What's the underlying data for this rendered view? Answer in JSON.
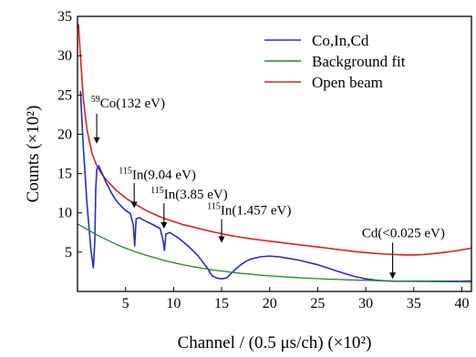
{
  "chart_data": {
    "type": "line",
    "xlabel": "Channel / (0.5 μs/ch)  (×10²)",
    "ylabel": "Counts (×10²)",
    "xlim": [
      0,
      41
    ],
    "ylim": [
      0,
      35
    ],
    "xticks": [
      5,
      10,
      15,
      20,
      25,
      30,
      35,
      40
    ],
    "yticks": [
      5,
      10,
      15,
      20,
      25,
      30,
      35
    ],
    "legend_position": "top-right",
    "series": [
      {
        "name": "Co,In,Cd",
        "color": "#2a2ad0",
        "x": [
          0.3,
          0.6,
          1.0,
          1.4,
          1.65,
          1.8,
          1.9,
          2.0,
          2.2,
          2.5,
          3.0,
          3.5,
          4.0,
          4.5,
          5.0,
          5.5,
          5.8,
          5.95,
          6.1,
          6.4,
          7.0,
          7.5,
          8.0,
          8.6,
          8.9,
          9.05,
          9.2,
          9.6,
          10.5,
          11.5,
          12.5,
          13.5,
          14.0,
          14.5,
          15.0,
          15.5,
          16.0,
          16.5,
          17.0,
          17.5,
          18.0,
          19.0,
          20.0,
          21.0,
          22.0,
          23.0,
          24.0,
          25.0,
          26.0,
          27.0,
          28.0,
          29.0,
          30.0,
          31.0,
          32.0,
          33.0,
          34.0,
          35.0,
          36.0,
          37.0,
          38.0,
          39.0,
          40.0,
          41.0
        ],
        "y": [
          25.5,
          18.5,
          11.0,
          5.2,
          3.0,
          6.5,
          13.0,
          15.5,
          16.0,
          15.2,
          13.8,
          12.6,
          11.6,
          10.9,
          10.3,
          9.9,
          8.5,
          5.8,
          9.2,
          9.4,
          9.0,
          8.7,
          8.4,
          8.0,
          6.5,
          5.2,
          7.3,
          7.5,
          6.8,
          5.8,
          4.6,
          3.0,
          2.0,
          1.7,
          1.6,
          1.7,
          2.3,
          2.9,
          3.4,
          3.8,
          4.1,
          4.4,
          4.5,
          4.4,
          4.2,
          4.0,
          3.7,
          3.4,
          3.0,
          2.6,
          2.2,
          1.85,
          1.6,
          1.45,
          1.35,
          1.3,
          1.3,
          1.3,
          1.3,
          1.3,
          1.3,
          1.3,
          1.3,
          1.35
        ]
      },
      {
        "name": "Background fit",
        "color": "#1f8a1f",
        "x": [
          0.0,
          1.0,
          2.0,
          3.0,
          4.0,
          5.0,
          6.0,
          7.0,
          8.0,
          9.0,
          10.0,
          11.0,
          12.0,
          13.0,
          14.0,
          15.0,
          16.0,
          17.0,
          18.0,
          19.0,
          20.0,
          22.0,
          24.0,
          26.0,
          28.0,
          30.0,
          32.0,
          34.0,
          36.0,
          38.0,
          40.0,
          41.0
        ],
        "y": [
          8.6,
          7.9,
          7.2,
          6.6,
          6.0,
          5.5,
          5.05,
          4.65,
          4.3,
          3.95,
          3.65,
          3.4,
          3.15,
          2.95,
          2.75,
          2.6,
          2.45,
          2.3,
          2.2,
          2.08,
          1.98,
          1.82,
          1.68,
          1.57,
          1.48,
          1.41,
          1.35,
          1.3,
          1.27,
          1.24,
          1.22,
          1.21
        ]
      },
      {
        "name": "Open beam",
        "color": "#e02020",
        "x": [
          0.1,
          0.3,
          0.6,
          1.0,
          1.5,
          2.0,
          2.5,
          3.0,
          4.0,
          5.0,
          6.0,
          7.0,
          8.0,
          9.0,
          10.0,
          11.0,
          12.0,
          13.0,
          14.0,
          15.0,
          16.0,
          17.0,
          18.0,
          19.0,
          20.0,
          21.0,
          22.0,
          23.0,
          24.0,
          25.0,
          26.0,
          27.0,
          28.0,
          29.0,
          30.0,
          31.0,
          32.0,
          33.0,
          34.0,
          35.0,
          36.0,
          37.0,
          38.0,
          39.0,
          40.0,
          41.0
        ],
        "y": [
          34.0,
          30.0,
          24.5,
          20.5,
          17.6,
          16.0,
          15.0,
          14.2,
          12.9,
          11.9,
          11.1,
          10.4,
          9.8,
          9.3,
          8.9,
          8.5,
          8.2,
          7.9,
          7.6,
          7.35,
          7.1,
          6.9,
          6.7,
          6.55,
          6.4,
          6.25,
          6.1,
          5.95,
          5.8,
          5.65,
          5.5,
          5.35,
          5.2,
          5.05,
          4.95,
          4.85,
          4.75,
          4.7,
          4.65,
          4.65,
          4.7,
          4.8,
          4.95,
          5.1,
          5.3,
          5.5
        ]
      }
    ],
    "annotations": [
      {
        "sup": "59",
        "text": "Co(132 eV)",
        "arrow_x": 2.0,
        "arrow_from_y": 22.6,
        "arrow_to_y": 18.8
      },
      {
        "sup": "115",
        "text": "In(9.04 eV)",
        "arrow_x": 5.9,
        "arrow_from_y": 13.8,
        "arrow_to_y": 10.6
      },
      {
        "sup": "115",
        "text": "In(3.85 eV)",
        "arrow_x": 9.0,
        "arrow_from_y": 11.2,
        "arrow_to_y": 8.0
      },
      {
        "sup": "115",
        "text": "In(1.457 eV)",
        "arrow_x": 15.0,
        "arrow_from_y": 9.2,
        "arrow_to_y": 6.2
      },
      {
        "sup": "",
        "text": "Cd(<0.025 eV)",
        "arrow_x": 32.8,
        "arrow_from_y": 6.2,
        "arrow_to_y": 1.6
      }
    ]
  }
}
